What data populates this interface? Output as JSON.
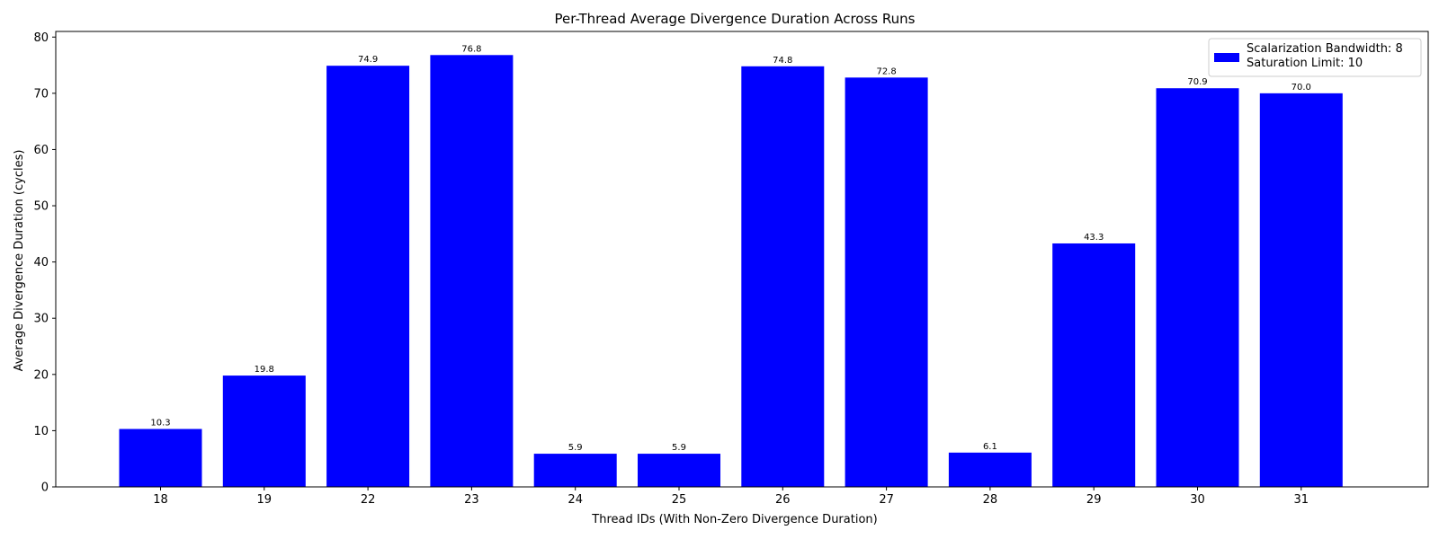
{
  "chart_data": {
    "type": "bar",
    "title": "Per-Thread Average Divergence Duration Across Runs",
    "xlabel": "Thread IDs (With Non-Zero Divergence Duration)",
    "ylabel": "Average Divergence Duration (cycles)",
    "categories": [
      "18",
      "19",
      "22",
      "23",
      "24",
      "25",
      "26",
      "27",
      "28",
      "29",
      "30",
      "31"
    ],
    "values": [
      10.3,
      19.8,
      74.9,
      76.8,
      5.9,
      5.9,
      74.8,
      72.8,
      6.1,
      43.3,
      70.9,
      70.0
    ],
    "data_labels": [
      "10.3",
      "19.8",
      "74.9",
      "76.8",
      "5.9",
      "5.9",
      "74.8",
      "72.8",
      "6.1",
      "43.3",
      "70.9",
      "70.0"
    ],
    "ylim": [
      0,
      81
    ],
    "yticks": [
      0,
      10,
      20,
      30,
      40,
      50,
      60,
      70,
      80
    ],
    "bar_color": "#0000ff",
    "grid": false,
    "legend": {
      "placement": "top-right",
      "lines": [
        "Scalarization Bandwidth: 8",
        "Saturation Limit: 10"
      ]
    }
  }
}
